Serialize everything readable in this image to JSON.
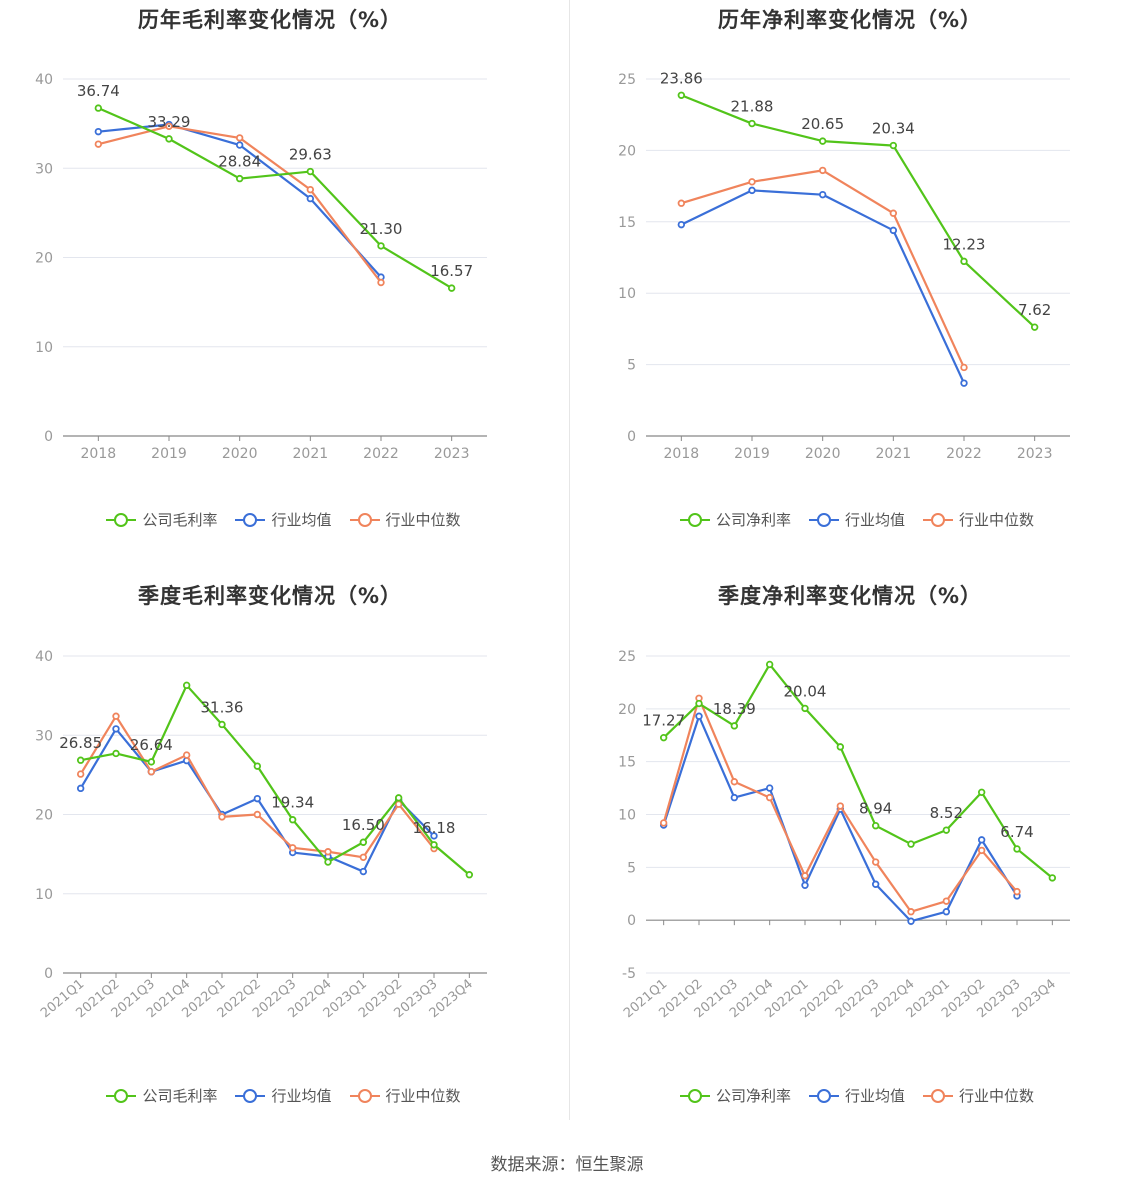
{
  "source": "数据来源：恒生聚源",
  "colors": {
    "company": "#52c41a",
    "avg": "#3a6fd8",
    "median": "#f0845c",
    "grid": "#e3e6ee",
    "axis": "#888888",
    "text": "#999999",
    "label": "#444444"
  },
  "chart_data": [
    {
      "type": "line",
      "title": "历年毛利率变化情况（%）",
      "categories": [
        "2018",
        "2019",
        "2020",
        "2021",
        "2022",
        "2023"
      ],
      "ylim": [
        0,
        40
      ],
      "yticks": [
        0,
        10,
        20,
        30,
        40
      ],
      "legend": "bottom",
      "series": [
        {
          "name": "公司毛利率",
          "color": "#52c41a",
          "values": [
            36.74,
            33.29,
            28.84,
            29.63,
            21.3,
            16.57
          ],
          "labels": [
            "36.74",
            "33.29",
            "28.84",
            "29.63",
            "21.30",
            "16.57"
          ]
        },
        {
          "name": "行业均值",
          "color": "#3a6fd8",
          "values": [
            34.1,
            34.9,
            32.6,
            26.6,
            17.8,
            null
          ]
        },
        {
          "name": "行业中位数",
          "color": "#f0845c",
          "values": [
            32.7,
            34.7,
            33.4,
            27.6,
            17.2,
            null
          ]
        }
      ]
    },
    {
      "type": "line",
      "title": "历年净利率变化情况（%）",
      "categories": [
        "2018",
        "2019",
        "2020",
        "2021",
        "2022",
        "2023"
      ],
      "ylim": [
        0,
        25
      ],
      "yticks": [
        0,
        5,
        10,
        15,
        20,
        25
      ],
      "legend": "bottom",
      "series": [
        {
          "name": "公司净利率",
          "color": "#52c41a",
          "values": [
            23.86,
            21.88,
            20.65,
            20.34,
            12.23,
            7.62
          ],
          "labels": [
            "23.86",
            "21.88",
            "20.65",
            "20.34",
            "12.23",
            "7.62"
          ]
        },
        {
          "name": "行业均值",
          "color": "#3a6fd8",
          "values": [
            14.8,
            17.2,
            16.9,
            14.4,
            3.7,
            null
          ]
        },
        {
          "name": "行业中位数",
          "color": "#f0845c",
          "values": [
            16.3,
            17.8,
            18.6,
            15.6,
            4.8,
            null
          ]
        }
      ]
    },
    {
      "type": "line",
      "title": "季度毛利率变化情况（%）",
      "categories": [
        "2021Q1",
        "2021Q2",
        "2021Q3",
        "2021Q4",
        "2022Q1",
        "2022Q2",
        "2022Q3",
        "2022Q4",
        "2023Q1",
        "2023Q2",
        "2023Q3",
        "2023Q4"
      ],
      "ylim": [
        0,
        40
      ],
      "yticks": [
        0,
        10,
        20,
        30,
        40
      ],
      "legend": "bottom",
      "series": [
        {
          "name": "公司毛利率",
          "color": "#52c41a",
          "values": [
            26.85,
            27.7,
            26.64,
            36.3,
            31.36,
            26.1,
            19.34,
            14.0,
            16.5,
            22.1,
            16.18,
            12.4
          ],
          "labels": [
            "26.85",
            "",
            "26.64",
            "",
            "31.36",
            "",
            "19.34",
            "",
            "16.50",
            "",
            "16.18",
            ""
          ]
        },
        {
          "name": "行业均值",
          "color": "#3a6fd8",
          "values": [
            23.3,
            30.8,
            25.4,
            26.8,
            20.0,
            22.0,
            15.2,
            14.7,
            12.8,
            21.8,
            17.3,
            null
          ]
        },
        {
          "name": "行业中位数",
          "color": "#f0845c",
          "values": [
            25.1,
            32.4,
            25.4,
            27.5,
            19.7,
            20.0,
            15.8,
            15.3,
            14.6,
            21.3,
            15.7,
            null
          ]
        }
      ]
    },
    {
      "type": "line",
      "title": "季度净利率变化情况（%）",
      "categories": [
        "2021Q1",
        "2021Q2",
        "2021Q3",
        "2021Q4",
        "2022Q1",
        "2022Q2",
        "2022Q3",
        "2022Q4",
        "2023Q1",
        "2023Q2",
        "2023Q3",
        "2023Q4"
      ],
      "ylim": [
        -5,
        25
      ],
      "yticks": [
        -5,
        0,
        5,
        10,
        15,
        20,
        25
      ],
      "legend": "bottom",
      "series": [
        {
          "name": "公司净利率",
          "color": "#52c41a",
          "values": [
            17.27,
            20.5,
            18.39,
            24.2,
            20.04,
            16.4,
            8.94,
            7.2,
            8.52,
            12.1,
            6.74,
            4.0
          ],
          "labels": [
            "17.27",
            "",
            "18.39",
            "",
            "20.04",
            "",
            "8.94",
            "",
            "8.52",
            "",
            "6.74",
            ""
          ]
        },
        {
          "name": "行业均值",
          "color": "#3a6fd8",
          "values": [
            9.0,
            19.3,
            11.6,
            12.5,
            3.3,
            10.5,
            3.4,
            -0.1,
            0.8,
            7.6,
            2.3,
            null
          ]
        },
        {
          "name": "行业中位数",
          "color": "#f0845c",
          "values": [
            9.2,
            21.0,
            13.1,
            11.6,
            4.2,
            10.8,
            5.5,
            0.8,
            1.8,
            6.6,
            2.7,
            null
          ]
        }
      ]
    }
  ]
}
